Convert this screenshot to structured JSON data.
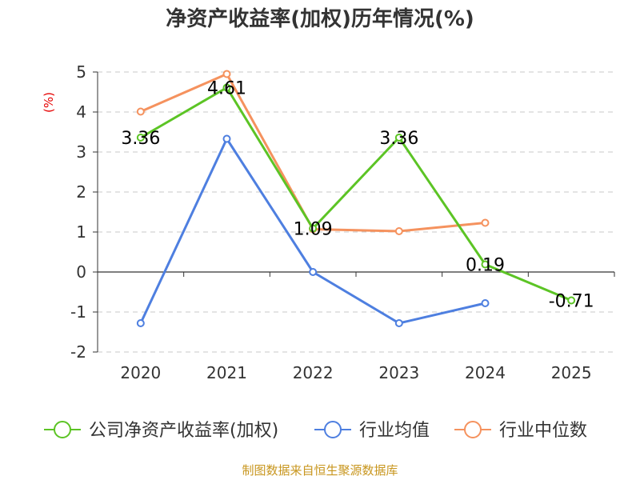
{
  "chart_data": {
    "type": "line",
    "title": "净资产收益率(加权)历年情况(%)",
    "ylabel": "(%)",
    "categories": [
      "2020",
      "2021",
      "2022",
      "2023",
      "2024",
      "2025"
    ],
    "ylim": [
      -2,
      5
    ],
    "yticks": [
      5,
      4,
      3,
      2,
      1,
      0,
      -1,
      -2
    ],
    "grid": true,
    "legend_position": "bottom",
    "series": [
      {
        "name": "公司净资产收益率(加权)",
        "color": "#5cc425",
        "values": [
          3.36,
          4.61,
          1.09,
          3.36,
          0.19,
          -0.71
        ],
        "labels": [
          "3.36",
          "4.61",
          "1.09",
          "3.36",
          "0.19",
          "-0.71"
        ]
      },
      {
        "name": "行业均值",
        "color": "#4e7fe0",
        "values": [
          -1.28,
          3.33,
          0.0,
          -1.28,
          -0.78,
          null
        ]
      },
      {
        "name": "行业中位数",
        "color": "#f5925e",
        "values": [
          4.01,
          4.95,
          1.07,
          1.02,
          1.23,
          null
        ]
      }
    ]
  },
  "footer": {
    "source": "制图数据来自恒生聚源数据库"
  }
}
